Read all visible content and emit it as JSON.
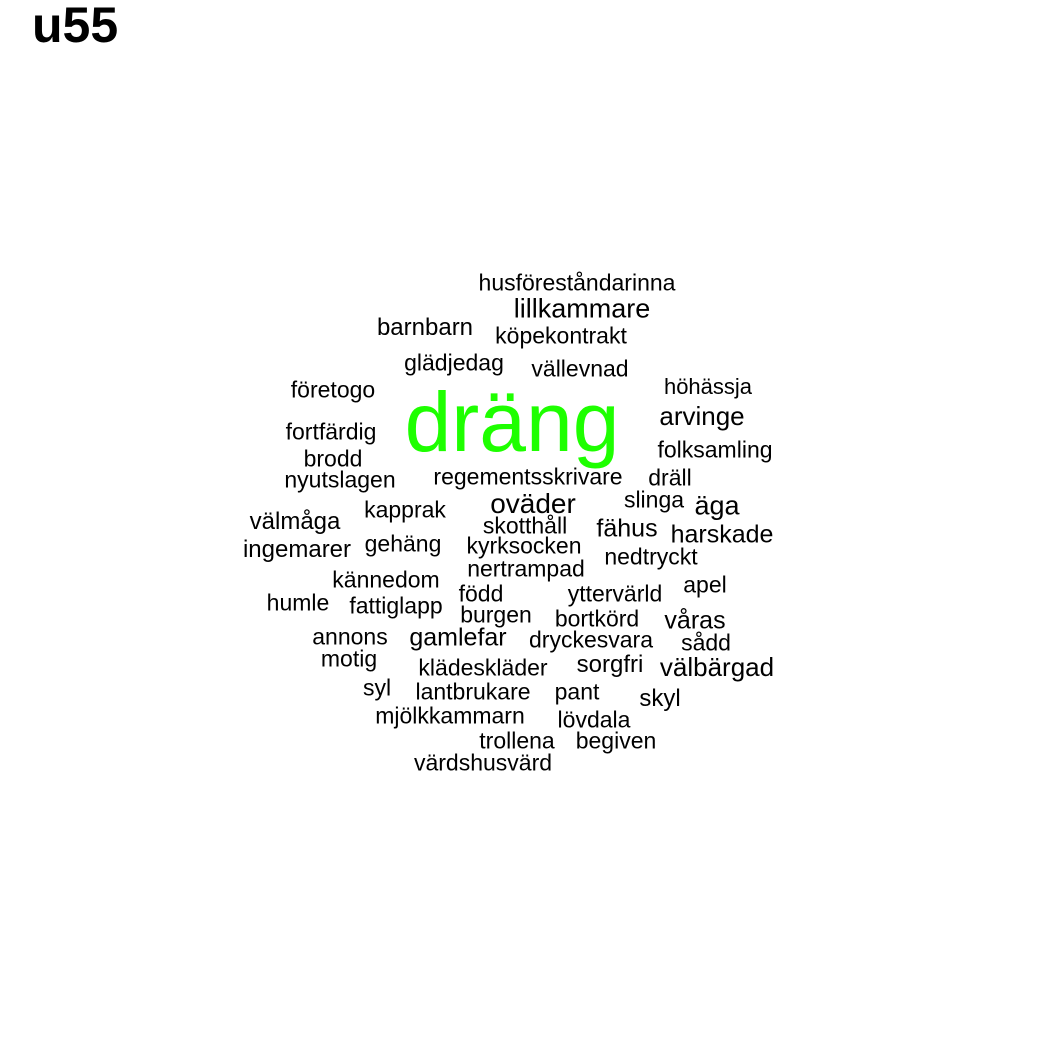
{
  "title": "u55",
  "colors": {
    "highlight": "#1eff00",
    "text": "#000000",
    "background": "#ffffff"
  },
  "words": [
    {
      "text": "dräng",
      "highlight": true
    },
    {
      "text": "husföreståndarinna"
    },
    {
      "text": "lillkammare"
    },
    {
      "text": "barnbarn"
    },
    {
      "text": "köpekontrakt"
    },
    {
      "text": "glädjedag"
    },
    {
      "text": "vällevnad"
    },
    {
      "text": "företogo"
    },
    {
      "text": "höhässja"
    },
    {
      "text": "arvinge"
    },
    {
      "text": "fortfärdig"
    },
    {
      "text": "folksamling"
    },
    {
      "text": "brodd"
    },
    {
      "text": "nyutslagen"
    },
    {
      "text": "regementsskrivare"
    },
    {
      "text": "dräll"
    },
    {
      "text": "oväder"
    },
    {
      "text": "slinga"
    },
    {
      "text": "äga"
    },
    {
      "text": "kapprak"
    },
    {
      "text": "välmåga"
    },
    {
      "text": "skotthåll"
    },
    {
      "text": "fähus"
    },
    {
      "text": "harskade"
    },
    {
      "text": "ingemarer"
    },
    {
      "text": "gehäng"
    },
    {
      "text": "kyrksocken"
    },
    {
      "text": "nedtryckt"
    },
    {
      "text": "nertrampad"
    },
    {
      "text": "kännedom"
    },
    {
      "text": "apel"
    },
    {
      "text": "född"
    },
    {
      "text": "yttervärld"
    },
    {
      "text": "humle"
    },
    {
      "text": "fattiglapp"
    },
    {
      "text": "burgen"
    },
    {
      "text": "bortkörd"
    },
    {
      "text": "våras"
    },
    {
      "text": "annons"
    },
    {
      "text": "gamlefar"
    },
    {
      "text": "dryckesvara"
    },
    {
      "text": "sådd"
    },
    {
      "text": "motig"
    },
    {
      "text": "klädeskläder"
    },
    {
      "text": "sorgfri"
    },
    {
      "text": "välbärgad"
    },
    {
      "text": "syl"
    },
    {
      "text": "lantbrukare"
    },
    {
      "text": "pant"
    },
    {
      "text": "skyl"
    },
    {
      "text": "mjölkkammarn"
    },
    {
      "text": "lövdala"
    },
    {
      "text": "trollena"
    },
    {
      "text": "begiven"
    },
    {
      "text": "värdshusvärd"
    }
  ]
}
